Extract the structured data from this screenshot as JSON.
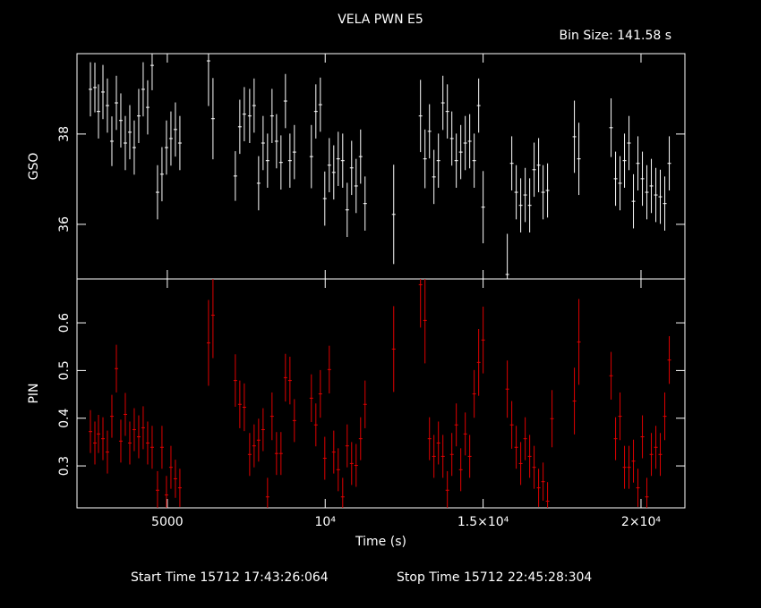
{
  "title": "VELA PWN E5",
  "bin_size": "Bin Size: 141.58 s",
  "footer": {
    "start": "Start Time 15712 17:43:26:064",
    "stop": "Stop Time 15712 22:45:28:304"
  },
  "chart_data": [
    {
      "type": "errorbar",
      "ylabel": "GSO",
      "xlim": [
        2140,
        21390
      ],
      "ylim": [
        34.79,
        39.78
      ],
      "yticks": [
        36,
        38
      ],
      "frame_color": "#ffffff",
      "x": [
        2565,
        2707,
        2820,
        2962,
        3103,
        3245,
        3387,
        3528,
        3670,
        3812,
        3953,
        4095,
        4236,
        4378,
        4520,
        4690,
        4831,
        4973,
        5115,
        5256,
        5398,
        6305,
        6446,
        7154,
        7296,
        7438,
        7608,
        7749,
        7891,
        8033,
        8174,
        8316,
        8458,
        8599,
        8741,
        8883,
        9024,
        9562,
        9704,
        9846,
        9987,
        10129,
        10271,
        10412,
        10554,
        10696,
        10837,
        10979,
        11121,
        11262,
        12169,
        13018,
        13160,
        13302,
        13443,
        13585,
        13727,
        13868,
        14010,
        14151,
        14293,
        14435,
        14576,
        14718,
        14860,
        15001,
        15766,
        15908,
        16049,
        16191,
        16333,
        16475,
        16616,
        16758,
        16900,
        17041,
        17891,
        18033,
        19053,
        19195,
        19336,
        19478,
        19620,
        19761,
        19903,
        20045,
        20186,
        20328,
        20470,
        20611,
        20753,
        20895
      ],
      "series": [
        {
          "color": "#ffffff",
          "values": [
            38.99,
            39.03,
            38.5,
            38.93,
            38.63,
            37.84,
            38.69,
            38.3,
            37.8,
            38.04,
            37.7,
            38.4,
            38.99,
            38.59,
            39.52,
            36.71,
            37.11,
            37.7,
            37.9,
            38.1,
            37.8,
            39.62,
            38.34,
            37.07,
            38.16,
            38.44,
            38.4,
            38.63,
            36.91,
            37.8,
            37.41,
            38.4,
            37.84,
            37.37,
            38.73,
            37.41,
            37.6,
            37.5,
            38.5,
            38.65,
            36.57,
            37.31,
            37.15,
            37.45,
            37.41,
            36.32,
            37.25,
            36.85,
            37.5,
            36.46,
            36.22,
            38.4,
            37.45,
            38.06,
            37.05,
            37.41,
            38.69,
            38.5,
            37.9,
            37.41,
            37.6,
            37.8,
            37.84,
            37.41,
            38.63,
            36.38,
            34.89,
            37.35,
            36.71,
            36.42,
            36.65,
            36.42,
            37.21,
            37.31,
            36.71,
            36.75,
            37.94,
            37.45,
            38.14,
            37.01,
            36.91,
            37.41,
            37.8,
            36.51,
            37.35,
            37.01,
            36.71,
            36.85,
            36.65,
            36.61,
            36.46,
            37.35
          ],
          "yerr": [
            0.6,
            0.55,
            0.6,
            0.6,
            0.6,
            0.55,
            0.6,
            0.6,
            0.6,
            0.6,
            0.6,
            0.6,
            0.6,
            0.6,
            0.55,
            0.6,
            0.6,
            0.6,
            0.6,
            0.6,
            0.6,
            1.0,
            0.9,
            0.55,
            0.6,
            0.6,
            0.6,
            0.6,
            0.6,
            0.6,
            0.6,
            0.6,
            0.6,
            0.6,
            0.6,
            0.6,
            0.6,
            0.7,
            0.6,
            0.6,
            0.6,
            0.6,
            0.6,
            0.6,
            0.6,
            0.6,
            0.6,
            0.6,
            0.6,
            0.6,
            1.1,
            0.8,
            0.65,
            0.6,
            0.6,
            0.6,
            0.6,
            0.6,
            0.6,
            0.6,
            0.6,
            0.6,
            0.6,
            0.6,
            0.6,
            0.8,
            0.9,
            0.6,
            0.6,
            0.6,
            0.6,
            0.6,
            0.6,
            0.6,
            0.6,
            0.6,
            0.8,
            0.8,
            0.65,
            0.6,
            0.6,
            0.6,
            0.6,
            0.6,
            0.6,
            0.6,
            0.6,
            0.6,
            0.6,
            0.6,
            0.6,
            0.6
          ]
        }
      ]
    },
    {
      "type": "errorbar",
      "ylabel": "PIN",
      "xlabel": "Time (s)",
      "xlim": [
        2140,
        21390
      ],
      "ylim": [
        0.212,
        0.692
      ],
      "yticks": [
        0.3,
        0.4,
        0.5,
        0.6
      ],
      "frame_color": "#ffffff",
      "xticks": [
        5000,
        {
          "value": 10000,
          "label": "10⁴"
        },
        {
          "value": 15000,
          "label": "1.5×10⁴"
        },
        {
          "value": 20000,
          "label": "2×10⁴"
        }
      ],
      "x": [
        2565,
        2707,
        2820,
        2962,
        3103,
        3245,
        3387,
        3528,
        3670,
        3812,
        3953,
        4095,
        4236,
        4378,
        4520,
        4690,
        4831,
        4973,
        5115,
        5256,
        5398,
        6305,
        6446,
        7154,
        7296,
        7438,
        7608,
        7749,
        7891,
        8033,
        8174,
        8316,
        8458,
        8599,
        8741,
        8883,
        9024,
        9562,
        9704,
        9846,
        9987,
        10129,
        10271,
        10412,
        10554,
        10696,
        10837,
        10979,
        11121,
        11262,
        12169,
        13018,
        13160,
        13302,
        13443,
        13585,
        13727,
        13868,
        14010,
        14151,
        14293,
        14435,
        14576,
        14718,
        14860,
        15001,
        15766,
        15908,
        16049,
        16191,
        16333,
        16475,
        16616,
        16758,
        16900,
        17041,
        17183,
        17891,
        18033,
        19053,
        19195,
        19336,
        19478,
        19620,
        19761,
        19903,
        20045,
        20186,
        20328,
        20470,
        20611,
        20753,
        20895
      ],
      "series": [
        {
          "color": "#e00000",
          "values": [
            0.372,
            0.348,
            0.367,
            0.357,
            0.329,
            0.404,
            0.504,
            0.352,
            0.408,
            0.348,
            0.376,
            0.361,
            0.38,
            0.348,
            0.339,
            0.249,
            0.339,
            0.239,
            0.297,
            0.273,
            0.254,
            0.558,
            0.616,
            0.479,
            0.429,
            0.423,
            0.324,
            0.342,
            0.354,
            0.376,
            0.235,
            0.404,
            0.326,
            0.326,
            0.485,
            0.479,
            0.395,
            0.442,
            0.386,
            0.451,
            0.316,
            0.502,
            0.329,
            0.292,
            0.235,
            0.342,
            0.305,
            0.301,
            0.357,
            0.429,
            0.545,
            0.68,
            0.605,
            0.357,
            0.32,
            0.348,
            0.32,
            0.249,
            0.324,
            0.386,
            0.292,
            0.367,
            0.32,
            0.451,
            0.517,
            0.564,
            0.461,
            0.386,
            0.339,
            0.305,
            0.357,
            0.32,
            0.297,
            0.254,
            0.267,
            0.226,
            0.399,
            0.436,
            0.56,
            0.489,
            0.357,
            0.404,
            0.297,
            0.297,
            0.31,
            0.254,
            0.361,
            0.235,
            0.324,
            0.339,
            0.324,
            0.404,
            0.522
          ],
          "yerr": [
            0.045,
            0.045,
            0.04,
            0.045,
            0.045,
            0.045,
            0.05,
            0.045,
            0.045,
            0.045,
            0.045,
            0.045,
            0.045,
            0.045,
            0.045,
            0.04,
            0.045,
            0.04,
            0.045,
            0.04,
            0.04,
            0.09,
            0.09,
            0.055,
            0.05,
            0.05,
            0.045,
            0.045,
            0.045,
            0.045,
            0.04,
            0.05,
            0.045,
            0.045,
            0.05,
            0.05,
            0.045,
            0.05,
            0.045,
            0.05,
            0.045,
            0.05,
            0.045,
            0.045,
            0.04,
            0.045,
            0.045,
            0.045,
            0.045,
            0.05,
            0.09,
            0.09,
            0.09,
            0.045,
            0.045,
            0.045,
            0.045,
            0.04,
            0.045,
            0.045,
            0.045,
            0.045,
            0.045,
            0.05,
            0.07,
            0.07,
            0.06,
            0.05,
            0.045,
            0.045,
            0.045,
            0.045,
            0.045,
            0.04,
            0.04,
            0.04,
            0.06,
            0.07,
            0.09,
            0.05,
            0.045,
            0.05,
            0.045,
            0.045,
            0.045,
            0.04,
            0.045,
            0.04,
            0.045,
            0.045,
            0.045,
            0.05,
            0.05
          ]
        }
      ]
    }
  ]
}
